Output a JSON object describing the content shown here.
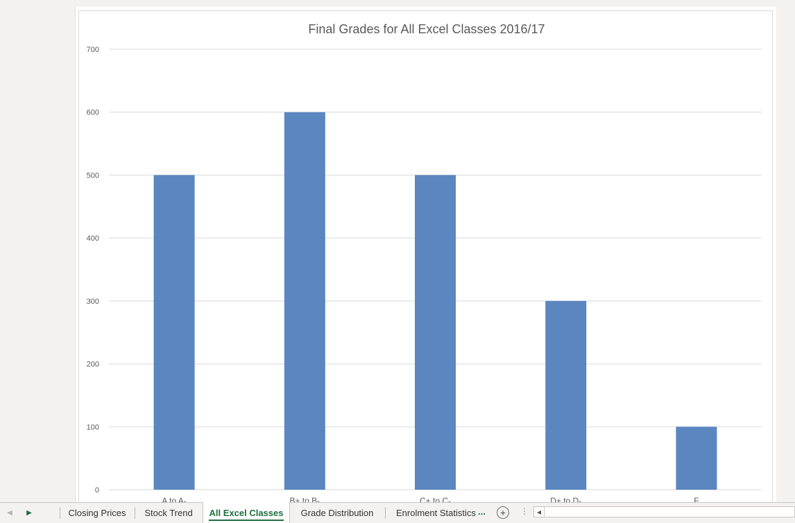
{
  "sheet_tabs": {
    "tabs": [
      {
        "label": "Closing Prices"
      },
      {
        "label": "Stock Trend"
      },
      {
        "label": "All Excel Classes"
      },
      {
        "label": "Grade Distribution"
      },
      {
        "label": "Enrolment Statistics"
      }
    ],
    "active_index": 2,
    "more_label": "...",
    "add_label": "+"
  },
  "chart_data": {
    "type": "bar",
    "title": "Final Grades for All Excel Classes 2016/17",
    "categories": [
      "A to A-",
      "B+ to B-",
      "C+ to C-",
      "D+ to D-",
      "F"
    ],
    "values": [
      500,
      600,
      500,
      300,
      100
    ],
    "ylim": [
      0,
      700
    ],
    "yticks": [
      0,
      100,
      200,
      300,
      400,
      500,
      600,
      700
    ],
    "bar_color": "#5b86c0",
    "grid": true,
    "legend": "none"
  }
}
